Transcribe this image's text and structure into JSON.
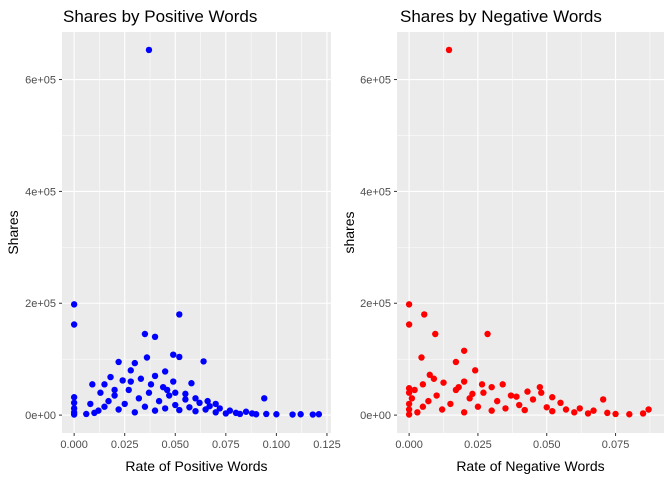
{
  "chart_data": [
    {
      "type": "scatter",
      "title": "Shares by Positive Words",
      "xlabel": "Rate of Positive Words",
      "ylabel": "Shares",
      "color": "#0000ff",
      "xlim": [
        -0.006,
        0.127
      ],
      "ylim": [
        -32000,
        685000
      ],
      "x_ticks": [
        0,
        0.025,
        0.05,
        0.075,
        0.1,
        0.125
      ],
      "x_tick_labels": [
        "0.000",
        "0.025",
        "0.050",
        "0.075",
        "0.100",
        "0.125"
      ],
      "y_ticks": [
        0,
        200000,
        400000,
        600000
      ],
      "y_tick_labels": [
        "0e+00",
        "2e+05",
        "4e+05",
        "6e+05"
      ],
      "grid": true,
      "legend": "none",
      "points": [
        [
          0.037,
          652900
        ],
        [
          0.0,
          198000
        ],
        [
          0.0,
          162000
        ],
        [
          0.052,
          180000
        ],
        [
          0.035,
          145000
        ],
        [
          0.04,
          140000
        ],
        [
          0.049,
          108000
        ],
        [
          0.052,
          104000
        ],
        [
          0.064,
          96000
        ],
        [
          0.036,
          103000
        ],
        [
          0.022,
          95000
        ],
        [
          0.03,
          93000
        ],
        [
          0.045,
          78000
        ],
        [
          0.028,
          80000
        ],
        [
          0.04,
          70000
        ],
        [
          0.033,
          65000
        ],
        [
          0.015,
          55000
        ],
        [
          0.009,
          55000
        ],
        [
          0.049,
          60000
        ],
        [
          0.058,
          57000
        ],
        [
          0.018,
          68000
        ],
        [
          0.024,
          62000
        ],
        [
          0.0,
          32000
        ],
        [
          0.0,
          22000
        ],
        [
          0.0,
          12000
        ],
        [
          0.0,
          5000
        ],
        [
          0.0,
          1000
        ],
        [
          0.006,
          2000
        ],
        [
          0.01,
          4000
        ],
        [
          0.012,
          8000
        ],
        [
          0.015,
          15000
        ],
        [
          0.017,
          25000
        ],
        [
          0.02,
          35000
        ],
        [
          0.022,
          10000
        ],
        [
          0.025,
          20000
        ],
        [
          0.027,
          45000
        ],
        [
          0.03,
          5000
        ],
        [
          0.032,
          30000
        ],
        [
          0.035,
          15000
        ],
        [
          0.037,
          40000
        ],
        [
          0.04,
          8000
        ],
        [
          0.042,
          25000
        ],
        [
          0.045,
          12000
        ],
        [
          0.047,
          35000
        ],
        [
          0.05,
          18000
        ],
        [
          0.052,
          9000
        ],
        [
          0.055,
          28000
        ],
        [
          0.057,
          14000
        ],
        [
          0.06,
          7000
        ],
        [
          0.062,
          22000
        ],
        [
          0.065,
          10000
        ],
        [
          0.067,
          16000
        ],
        [
          0.07,
          5000
        ],
        [
          0.072,
          12000
        ],
        [
          0.075,
          3000
        ],
        [
          0.077,
          8000
        ],
        [
          0.08,
          4000
        ],
        [
          0.082,
          2000
        ],
        [
          0.085,
          6000
        ],
        [
          0.088,
          3000
        ],
        [
          0.09,
          1500
        ],
        [
          0.094,
          30000
        ],
        [
          0.095,
          2000
        ],
        [
          0.1,
          1500
        ],
        [
          0.108,
          1000
        ],
        [
          0.112,
          1500
        ],
        [
          0.118,
          1000
        ],
        [
          0.121,
          1500
        ],
        [
          0.028,
          60000
        ],
        [
          0.044,
          50000
        ],
        [
          0.046,
          45000
        ],
        [
          0.038,
          55000
        ],
        [
          0.05,
          40000
        ],
        [
          0.055,
          38000
        ],
        [
          0.06,
          30000
        ],
        [
          0.066,
          25000
        ],
        [
          0.07,
          20000
        ],
        [
          0.02,
          45000
        ],
        [
          0.013,
          40000
        ],
        [
          0.008,
          20000
        ]
      ]
    },
    {
      "type": "scatter",
      "title": "Shares by Negative Words",
      "xlabel": "Rate of Negative Words",
      "ylabel": "shares",
      "color": "#ff0000",
      "xlim": [
        -0.0044,
        0.0926
      ],
      "ylim": [
        -32000,
        685000
      ],
      "x_ticks": [
        0,
        0.025,
        0.05,
        0.075
      ],
      "x_tick_labels": [
        "0.000",
        "0.025",
        "0.050",
        "0.075"
      ],
      "y_ticks": [
        0,
        200000,
        400000,
        600000
      ],
      "y_tick_labels": [
        "0e+00",
        "2e+05",
        "4e+05",
        "6e+05"
      ],
      "grid": true,
      "legend": "none",
      "points": [
        [
          0.0145,
          652900
        ],
        [
          0.0,
          198000
        ],
        [
          0.0,
          162000
        ],
        [
          0.0055,
          180000
        ],
        [
          0.0095,
          145000
        ],
        [
          0.0285,
          145000
        ],
        [
          0.02,
          115000
        ],
        [
          0.0045,
          103000
        ],
        [
          0.017,
          95000
        ],
        [
          0.024,
          80000
        ],
        [
          0.0075,
          72000
        ],
        [
          0.009,
          65000
        ],
        [
          0.02,
          60000
        ],
        [
          0.0125,
          58000
        ],
        [
          0.005,
          55000
        ],
        [
          0.0265,
          55000
        ],
        [
          0.034,
          55000
        ],
        [
          0.0,
          48000
        ],
        [
          0.002,
          45000
        ],
        [
          0.0,
          40000
        ],
        [
          0.001,
          30000
        ],
        [
          0.0,
          20000
        ],
        [
          0.0,
          10000
        ],
        [
          0.0,
          1000
        ],
        [
          0.003,
          5000
        ],
        [
          0.005,
          15000
        ],
        [
          0.007,
          25000
        ],
        [
          0.01,
          35000
        ],
        [
          0.012,
          10000
        ],
        [
          0.015,
          20000
        ],
        [
          0.017,
          45000
        ],
        [
          0.02,
          5000
        ],
        [
          0.022,
          30000
        ],
        [
          0.025,
          15000
        ],
        [
          0.027,
          40000
        ],
        [
          0.03,
          8000
        ],
        [
          0.032,
          25000
        ],
        [
          0.035,
          12000
        ],
        [
          0.037,
          35000
        ],
        [
          0.04,
          18000
        ],
        [
          0.042,
          9000
        ],
        [
          0.045,
          28000
        ],
        [
          0.0475,
          50000
        ],
        [
          0.05,
          14000
        ],
        [
          0.052,
          7000
        ],
        [
          0.055,
          22000
        ],
        [
          0.057,
          10000
        ],
        [
          0.06,
          5000
        ],
        [
          0.062,
          12000
        ],
        [
          0.065,
          3000
        ],
        [
          0.067,
          8000
        ],
        [
          0.0705,
          28000
        ],
        [
          0.072,
          4000
        ],
        [
          0.075,
          2000
        ],
        [
          0.08,
          1500
        ],
        [
          0.085,
          3000
        ],
        [
          0.087,
          10000
        ],
        [
          0.018,
          50000
        ],
        [
          0.023,
          38000
        ],
        [
          0.039,
          33000
        ],
        [
          0.048,
          40000
        ],
        [
          0.052,
          32000
        ],
        [
          0.043,
          42000
        ],
        [
          0.03,
          50000
        ]
      ]
    }
  ]
}
